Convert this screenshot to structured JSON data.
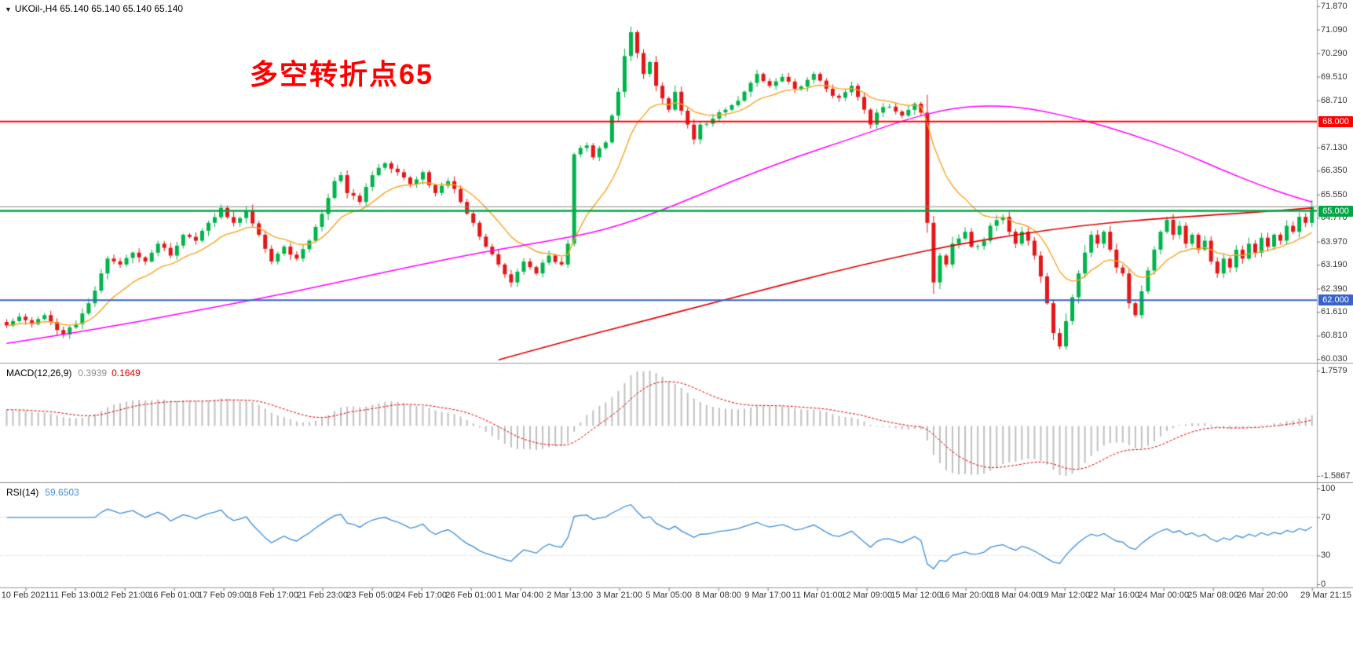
{
  "window": {
    "dropdown_glyph": "▼",
    "symbol_ohlc": "UKOil-,H4  65.140 65.140 65.140 65.140"
  },
  "annotation": {
    "text": "多空转折点65",
    "color": "#FF0000"
  },
  "panels": {
    "macd": {
      "label": "MACD(12,26,9)",
      "value_main": "0.3939",
      "value_signal": "0.1649",
      "scale_labels": [
        "1.7579",
        "-1.5867"
      ]
    },
    "rsi": {
      "label": "RSI(14)",
      "value": "59.6503",
      "scale_labels": [
        "100",
        "70",
        "30",
        "0"
      ]
    }
  },
  "price_axis": {
    "labels": [
      "71.870",
      "71.090",
      "70.290",
      "69.510",
      "68.710",
      "67.130",
      "66.350",
      "65.550",
      "64.770",
      "63.970",
      "63.190",
      "62.390",
      "61.610",
      "60.810",
      "60.030"
    ]
  },
  "time_axis": {
    "labels": [
      "10 Feb 2021",
      "11 Feb 13:00",
      "12 Feb 21:00",
      "16 Feb 01:00",
      "17 Feb 09:00",
      "18 Feb 17:00",
      "21 Feb 23:00",
      "23 Feb 05:00",
      "24 Feb 17:00",
      "26 Feb 01:00",
      "1 Mar 04:00",
      "2 Mar 13:00",
      "3 Mar 21:00",
      "5 Mar 05:00",
      "8 Mar 08:00",
      "9 Mar 17:00",
      "11 Mar 01:00",
      "12 Mar 09:00",
      "15 Mar 12:00",
      "16 Mar 20:00",
      "18 Mar 04:00",
      "19 Mar 12:00",
      "22 Mar 16:00",
      "24 Mar 00:00",
      "25 Mar 08:00",
      "26 Mar 20:00",
      "29 Mar 21:15"
    ]
  },
  "chart_data": {
    "type": "candlestick",
    "symbol": "UKOil-",
    "timeframe": "H4",
    "current_price": 65.14,
    "visible_price_range": [
      59.9,
      72.082
    ],
    "price_axis_ticks": [
      71.87,
      71.09,
      70.29,
      69.51,
      68.71,
      67.13,
      66.35,
      65.55,
      64.77,
      63.97,
      63.19,
      62.39,
      61.61,
      60.81,
      60.03
    ],
    "candle_count": 208,
    "seed": 11,
    "noise": 0.09,
    "up_color": "#00B44A",
    "down_color": "#E41616",
    "close_anchors": [
      [
        0,
        61.15
      ],
      [
        2,
        61.45
      ],
      [
        4,
        61.2
      ],
      [
        6,
        61.5
      ],
      [
        8,
        61.0
      ],
      [
        9,
        60.85
      ],
      [
        11,
        61.2
      ],
      [
        13,
        61.9
      ],
      [
        15,
        62.9
      ],
      [
        16,
        63.4
      ],
      [
        18,
        63.2
      ],
      [
        20,
        63.6
      ],
      [
        22,
        63.3
      ],
      [
        24,
        63.9
      ],
      [
        26,
        63.5
      ],
      [
        28,
        64.2
      ],
      [
        30,
        64.0
      ],
      [
        32,
        64.6
      ],
      [
        34,
        65.1
      ],
      [
        36,
        64.6
      ],
      [
        38,
        65.0
      ],
      [
        40,
        64.2
      ],
      [
        42,
        63.3
      ],
      [
        44,
        63.8
      ],
      [
        46,
        63.4
      ],
      [
        48,
        64.0
      ],
      [
        50,
        64.9
      ],
      [
        52,
        66.0
      ],
      [
        53,
        66.2
      ],
      [
        54,
        65.6
      ],
      [
        56,
        65.3
      ],
      [
        58,
        66.2
      ],
      [
        60,
        66.6
      ],
      [
        62,
        66.3
      ],
      [
        64,
        65.9
      ],
      [
        66,
        66.3
      ],
      [
        68,
        65.6
      ],
      [
        70,
        66.0
      ],
      [
        72,
        65.3
      ],
      [
        74,
        64.6
      ],
      [
        76,
        63.8
      ],
      [
        78,
        63.2
      ],
      [
        80,
        62.6
      ],
      [
        82,
        63.3
      ],
      [
        84,
        62.9
      ],
      [
        86,
        63.5
      ],
      [
        88,
        63.2
      ],
      [
        89,
        63.9
      ],
      [
        90,
        66.9
      ],
      [
        92,
        67.2
      ],
      [
        93,
        66.8
      ],
      [
        95,
        67.3
      ],
      [
        96,
        68.2
      ],
      [
        97,
        69.0
      ],
      [
        98,
        70.2
      ],
      [
        99,
        71.0
      ],
      [
        100,
        70.3
      ],
      [
        101,
        69.6
      ],
      [
        102,
        70.0
      ],
      [
        103,
        69.2
      ],
      [
        105,
        68.4
      ],
      [
        106,
        69.0
      ],
      [
        108,
        67.9
      ],
      [
        109,
        67.4
      ],
      [
        110,
        67.9
      ],
      [
        112,
        68.1
      ],
      [
        114,
        68.4
      ],
      [
        116,
        68.7
      ],
      [
        118,
        69.3
      ],
      [
        119,
        69.6
      ],
      [
        121,
        69.2
      ],
      [
        123,
        69.5
      ],
      [
        125,
        69.1
      ],
      [
        127,
        69.4
      ],
      [
        128,
        69.6
      ],
      [
        130,
        69.1
      ],
      [
        132,
        68.8
      ],
      [
        134,
        69.2
      ],
      [
        136,
        68.4
      ],
      [
        137,
        67.9
      ],
      [
        138,
        68.3
      ],
      [
        140,
        68.5
      ],
      [
        142,
        68.2
      ],
      [
        144,
        68.6
      ],
      [
        145,
        68.3
      ],
      [
        146,
        64.6
      ],
      [
        147,
        62.6
      ],
      [
        148,
        63.5
      ],
      [
        149,
        63.2
      ],
      [
        150,
        63.9
      ],
      [
        152,
        64.3
      ],
      [
        153,
        63.8
      ],
      [
        155,
        64.0
      ],
      [
        156,
        64.5
      ],
      [
        158,
        64.8
      ],
      [
        159,
        64.3
      ],
      [
        160,
        63.9
      ],
      [
        161,
        64.3
      ],
      [
        162,
        64.0
      ],
      [
        163,
        63.5
      ],
      [
        164,
        62.8
      ],
      [
        165,
        61.9
      ],
      [
        166,
        60.9
      ],
      [
        167,
        60.45
      ],
      [
        168,
        61.3
      ],
      [
        169,
        62.1
      ],
      [
        170,
        62.9
      ],
      [
        171,
        63.6
      ],
      [
        172,
        64.2
      ],
      [
        173,
        63.9
      ],
      [
        174,
        64.3
      ],
      [
        175,
        63.7
      ],
      [
        176,
        63.1
      ],
      [
        177,
        62.9
      ],
      [
        178,
        61.9
      ],
      [
        179,
        61.5
      ],
      [
        180,
        62.3
      ],
      [
        181,
        63.0
      ],
      [
        182,
        63.7
      ],
      [
        183,
        64.3
      ],
      [
        184,
        64.7
      ],
      [
        185,
        64.2
      ],
      [
        186,
        64.5
      ],
      [
        187,
        63.9
      ],
      [
        188,
        64.2
      ],
      [
        189,
        63.7
      ],
      [
        190,
        64.0
      ],
      [
        191,
        63.3
      ],
      [
        192,
        62.9
      ],
      [
        193,
        63.4
      ],
      [
        194,
        63.1
      ],
      [
        195,
        63.7
      ],
      [
        196,
        63.4
      ],
      [
        197,
        63.9
      ],
      [
        198,
        63.6
      ],
      [
        199,
        64.1
      ],
      [
        200,
        63.8
      ],
      [
        201,
        64.2
      ],
      [
        202,
        64.0
      ],
      [
        203,
        64.5
      ],
      [
        204,
        64.3
      ],
      [
        205,
        64.8
      ],
      [
        206,
        64.6
      ],
      [
        207,
        65.14
      ]
    ],
    "hlines": [
      {
        "price": 68.0,
        "color": "#FF0000",
        "width": 2,
        "badge": "68.000"
      },
      {
        "price": 65.14,
        "color": "#8A8A8A",
        "width": 1,
        "badge": null
      },
      {
        "price": 65.0,
        "color": "#00A843",
        "width": 2.5,
        "badge": "65.000"
      },
      {
        "price": 62.0,
        "color": "#3A62C8",
        "width": 2,
        "badge": "62.000"
      }
    ],
    "moving_averages": [
      {
        "name": "fast-ma",
        "method": "ema",
        "period": 13,
        "color": "#F5A623",
        "width": 1.4
      },
      {
        "name": "mid-ma",
        "color": "#FF00FF",
        "width": 1.5,
        "anchors": [
          [
            0,
            60.55
          ],
          [
            15,
            61.05
          ],
          [
            30,
            61.65
          ],
          [
            45,
            62.25
          ],
          [
            60,
            62.95
          ],
          [
            75,
            63.6
          ],
          [
            85,
            63.95
          ],
          [
            95,
            64.35
          ],
          [
            105,
            65.1
          ],
          [
            115,
            66.0
          ],
          [
            125,
            66.8
          ],
          [
            135,
            67.5
          ],
          [
            143,
            68.1
          ],
          [
            150,
            68.45
          ],
          [
            156,
            68.55
          ],
          [
            162,
            68.45
          ],
          [
            170,
            68.1
          ],
          [
            178,
            67.6
          ],
          [
            186,
            67.0
          ],
          [
            193,
            66.35
          ],
          [
            199,
            65.85
          ],
          [
            203,
            65.55
          ],
          [
            207,
            65.3
          ]
        ]
      },
      {
        "name": "slow-ma",
        "color": "#E00000",
        "width": 1.7,
        "anchors": [
          [
            78,
            60.0
          ],
          [
            90,
            60.7
          ],
          [
            100,
            61.25
          ],
          [
            110,
            61.8
          ],
          [
            120,
            62.35
          ],
          [
            130,
            62.9
          ],
          [
            140,
            63.4
          ],
          [
            150,
            63.85
          ],
          [
            160,
            64.2
          ],
          [
            170,
            64.5
          ],
          [
            180,
            64.7
          ],
          [
            190,
            64.85
          ],
          [
            198,
            64.95
          ],
          [
            207,
            65.1
          ]
        ]
      }
    ],
    "macd": {
      "fast": 12,
      "slow": 26,
      "signal_period": 9,
      "histogram_color": "#C0C0C0",
      "signal_color": "#E00000",
      "scale_max": 1.7579,
      "scale_min": -1.5867,
      "current_main": 0.3939,
      "current_signal": 0.1649
    },
    "rsi": {
      "period": 14,
      "color": "#3E8FD8",
      "scale": [
        0,
        100
      ],
      "levels": [
        70,
        30
      ],
      "current": 59.6503
    }
  }
}
